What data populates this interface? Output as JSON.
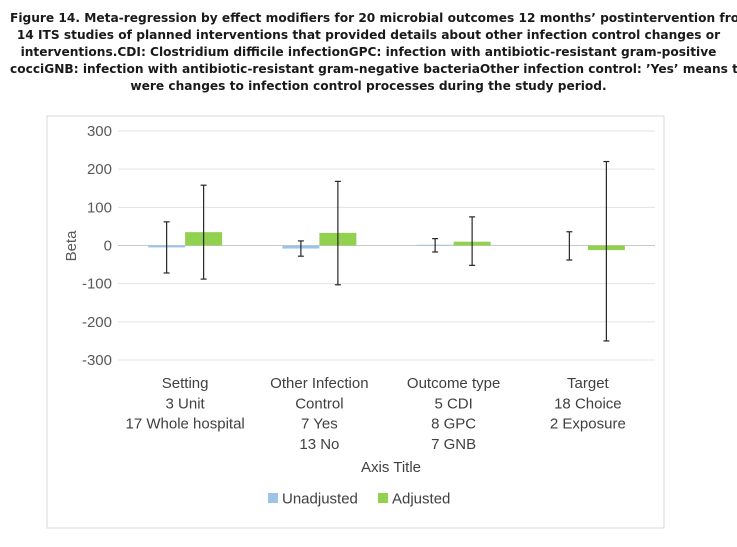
{
  "caption": {
    "lines": [
      "Figure 14.  Meta-regression by effect modifiers for 20 microbial outcomes 12 months’ postintervention from",
      "14 ITS studies of planned interventions that provided details about other infection control changes or",
      "interventions.CDI: Clostridium difficile infectionGPC: infection with antibiotic-resistant gram-positive",
      "cocciGNB: infection with antibiotic-resistant gram-negative bacteriaOther infection control: ’Yes’ means there",
      "were changes to infection control processes during the study period."
    ]
  },
  "chart_data": {
    "type": "bar",
    "title": "",
    "xlabel": "Axis Title",
    "ylabel": "Beta",
    "ylim": [
      -300,
      300
    ],
    "yticks": [
      300,
      200,
      100,
      0,
      -100,
      -200,
      -300
    ],
    "y_tick_labels": [
      "300",
      "200",
      "100",
      "0",
      "-100",
      "-200",
      "-300"
    ],
    "grid": true,
    "legend_position": "bottom",
    "categories": [
      [
        "Setting",
        "3 Unit",
        "17 Whole hospital"
      ],
      [
        "Other Infection",
        "Control",
        "7 Yes",
        "13 No"
      ],
      [
        "Outcome type",
        "5 CDI",
        "8 GPC",
        "7 GNB"
      ],
      [
        "Target",
        "18 Choice",
        "2 Exposure"
      ]
    ],
    "series": [
      {
        "name": "Unadjusted",
        "color": "#9dc3e6",
        "values": [
          -5,
          -8,
          2,
          0
        ],
        "error_low": [
          -72,
          -28,
          -17,
          -38
        ],
        "error_high": [
          62,
          12,
          18,
          36
        ]
      },
      {
        "name": "Adjusted",
        "color": "#92d050",
        "values": [
          35,
          33,
          10,
          -12
        ],
        "error_low": [
          -88,
          -103,
          -52,
          -250
        ],
        "error_high": [
          158,
          168,
          75,
          220
        ]
      }
    ]
  }
}
